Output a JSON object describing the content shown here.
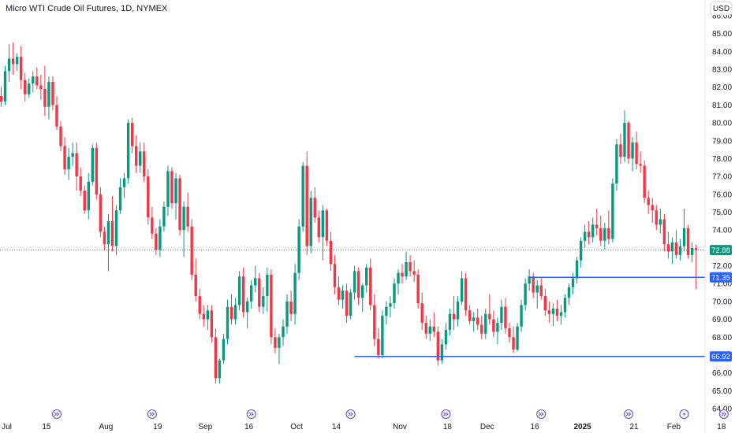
{
  "chart_data": {
    "type": "candlestick",
    "title": "Micro WTI Crude Oil Futures, 1D, NYMEX",
    "currency": "USD",
    "ylim": [
      64.0,
      86.0
    ],
    "y_ticks": [
      "64.00",
      "65.00",
      "66.00",
      "67.00",
      "68.00",
      "69.00",
      "70.00",
      "71.00",
      "72.00",
      "73.00",
      "74.00",
      "75.00",
      "76.00",
      "77.00",
      "78.00",
      "79.00",
      "80.00",
      "81.00",
      "82.00",
      "83.00",
      "84.00",
      "85.00",
      "86.00"
    ],
    "x_ticks": [
      {
        "label": "Jul",
        "i": 1
      },
      {
        "label": "15",
        "i": 11
      },
      {
        "label": "Aug",
        "i": 26
      },
      {
        "label": "19",
        "i": 39
      },
      {
        "label": "Sep",
        "i": 51
      },
      {
        "label": "16",
        "i": 62
      },
      {
        "label": "Oct",
        "i": 74
      },
      {
        "label": "14",
        "i": 84
      },
      {
        "label": "Nov",
        "i": 100
      },
      {
        "label": "18",
        "i": 112
      },
      {
        "label": "Dec",
        "i": 122
      },
      {
        "label": "16",
        "i": 134
      },
      {
        "label": "2025",
        "i": 146,
        "bold": true
      },
      {
        "label": "21",
        "i": 159
      },
      {
        "label": "Feb",
        "i": 169
      },
      {
        "label": "18",
        "i": 181
      }
    ],
    "last_price": {
      "label": "72.88",
      "value": 72.88,
      "color": "#089981"
    },
    "horizontal_levels": [
      {
        "label": "71.35",
        "value": 71.35,
        "start_i": 133,
        "color": "#2962ff"
      },
      {
        "label": "66.92",
        "value": 66.92,
        "start_i": 89,
        "color": "#2962ff"
      }
    ],
    "event_markers": [
      {
        "i": 14,
        "type": "arrow"
      },
      {
        "i": 38,
        "type": "arrow"
      },
      {
        "i": 63,
        "type": "arrow"
      },
      {
        "i": 88,
        "type": "arrow"
      },
      {
        "i": 112,
        "type": "arrow"
      },
      {
        "i": 136,
        "type": "arrow"
      },
      {
        "i": 158,
        "type": "arrow"
      },
      {
        "i": 172,
        "type": "lightning"
      },
      {
        "i": 182,
        "type": "arrow"
      }
    ],
    "up_color": "#089981",
    "down_color": "#f23645",
    "candles": [
      [
        81.5,
        82.0,
        80.9,
        81.2
      ],
      [
        81.2,
        83.2,
        81.0,
        82.9
      ],
      [
        82.9,
        84.4,
        82.3,
        83.6
      ],
      [
        83.6,
        84.5,
        82.7,
        83.3
      ],
      [
        83.3,
        83.9,
        82.9,
        83.7
      ],
      [
        83.7,
        84.3,
        81.9,
        82.4
      ],
      [
        82.4,
        82.8,
        81.2,
        81.6
      ],
      [
        81.6,
        82.5,
        81.4,
        82.2
      ],
      [
        82.2,
        82.9,
        81.7,
        82.6
      ],
      [
        82.6,
        83.1,
        81.9,
        82.1
      ],
      [
        82.1,
        82.7,
        81.3,
        81.9
      ],
      [
        81.9,
        83.2,
        80.4,
        80.9
      ],
      [
        80.9,
        82.6,
        80.2,
        82.3
      ],
      [
        82.3,
        82.6,
        80.7,
        81.0
      ],
      [
        81.0,
        81.5,
        79.6,
        79.8
      ],
      [
        79.8,
        80.1,
        78.4,
        78.7
      ],
      [
        78.7,
        79.2,
        77.1,
        77.4
      ],
      [
        77.4,
        78.6,
        76.8,
        78.1
      ],
      [
        78.1,
        78.9,
        77.6,
        78.3
      ],
      [
        78.3,
        78.9,
        76.2,
        77.0
      ],
      [
        77.0,
        77.5,
        75.9,
        76.2
      ],
      [
        76.2,
        76.5,
        74.9,
        75.1
      ],
      [
        75.1,
        77.2,
        74.6,
        76.7
      ],
      [
        76.7,
        78.8,
        76.5,
        78.6
      ],
      [
        78.6,
        78.9,
        75.7,
        76.0
      ],
      [
        76.0,
        76.4,
        73.6,
        73.9
      ],
      [
        73.9,
        74.2,
        72.9,
        73.2
      ],
      [
        73.2,
        74.9,
        71.7,
        74.5
      ],
      [
        74.5,
        75.9,
        72.8,
        73.1
      ],
      [
        73.1,
        75.4,
        72.6,
        75.1
      ],
      [
        75.1,
        76.9,
        74.9,
        76.4
      ],
      [
        76.4,
        77.2,
        75.8,
        76.9
      ],
      [
        76.9,
        80.2,
        76.6,
        80.0
      ],
      [
        80.0,
        80.3,
        78.3,
        78.7
      ],
      [
        78.7,
        79.3,
        77.2,
        77.6
      ],
      [
        77.6,
        78.9,
        77.2,
        78.4
      ],
      [
        78.4,
        78.9,
        76.7,
        77.0
      ],
      [
        77.0,
        77.4,
        74.3,
        74.7
      ],
      [
        74.7,
        75.3,
        73.5,
        73.8
      ],
      [
        73.8,
        74.1,
        72.6,
        72.9
      ],
      [
        72.9,
        74.6,
        72.5,
        74.2
      ],
      [
        74.2,
        75.6,
        73.9,
        75.3
      ],
      [
        75.3,
        77.6,
        74.8,
        77.3
      ],
      [
        77.3,
        77.5,
        75.2,
        75.5
      ],
      [
        75.5,
        77.2,
        74.6,
        76.9
      ],
      [
        76.9,
        77.1,
        73.7,
        74.0
      ],
      [
        74.0,
        75.6,
        72.5,
        75.3
      ],
      [
        75.3,
        76.1,
        73.9,
        74.2
      ],
      [
        74.2,
        74.6,
        71.2,
        71.5
      ],
      [
        71.5,
        72.4,
        70.0,
        70.3
      ],
      [
        70.3,
        70.7,
        69.0,
        69.3
      ],
      [
        69.3,
        69.8,
        68.6,
        69.0
      ],
      [
        69.0,
        69.8,
        68.4,
        69.5
      ],
      [
        69.5,
        69.8,
        67.7,
        68.0
      ],
      [
        68.0,
        68.5,
        65.4,
        65.7
      ],
      [
        65.7,
        66.8,
        65.4,
        66.7
      ],
      [
        66.7,
        68.2,
        66.5,
        67.9
      ],
      [
        67.9,
        70.1,
        67.6,
        69.7
      ],
      [
        69.7,
        70.4,
        68.7,
        69.0
      ],
      [
        69.0,
        70.2,
        68.7,
        69.8
      ],
      [
        69.8,
        71.7,
        69.5,
        71.4
      ],
      [
        71.4,
        71.9,
        69.1,
        69.4
      ],
      [
        69.4,
        70.2,
        68.5,
        70.0
      ],
      [
        70.0,
        71.2,
        69.6,
        70.9
      ],
      [
        70.9,
        72.0,
        70.5,
        71.3
      ],
      [
        71.3,
        71.6,
        69.4,
        69.7
      ],
      [
        69.7,
        70.8,
        69.3,
        70.3
      ],
      [
        70.3,
        71.9,
        69.4,
        71.5
      ],
      [
        71.5,
        71.8,
        67.6,
        68.0
      ],
      [
        68.0,
        68.5,
        67.1,
        67.4
      ],
      [
        67.4,
        68.2,
        66.5,
        68.0
      ],
      [
        68.0,
        69.0,
        67.5,
        68.6
      ],
      [
        68.6,
        70.4,
        68.2,
        70.0
      ],
      [
        70.0,
        70.6,
        68.9,
        69.3
      ],
      [
        69.3,
        72.1,
        68.7,
        71.6
      ],
      [
        71.6,
        74.6,
        71.2,
        74.2
      ],
      [
        74.2,
        77.8,
        73.9,
        77.6
      ],
      [
        77.6,
        78.4,
        72.6,
        73.1
      ],
      [
        73.1,
        76.2,
        72.7,
        75.8
      ],
      [
        75.8,
        76.4,
        74.4,
        74.7
      ],
      [
        74.7,
        75.1,
        73.3,
        73.6
      ],
      [
        73.6,
        75.4,
        72.3,
        75.1
      ],
      [
        75.1,
        75.2,
        73.1,
        73.4
      ],
      [
        73.4,
        73.9,
        71.7,
        72.1
      ],
      [
        72.1,
        72.6,
        70.4,
        70.8
      ],
      [
        70.8,
        71.4,
        69.8,
        70.1
      ],
      [
        70.1,
        70.9,
        69.6,
        70.6
      ],
      [
        70.6,
        71.0,
        68.8,
        69.2
      ],
      [
        69.2,
        70.7,
        69.0,
        70.5
      ],
      [
        70.5,
        72.0,
        70.1,
        71.7
      ],
      [
        71.7,
        71.9,
        69.8,
        70.2
      ],
      [
        70.2,
        71.0,
        69.4,
        70.9
      ],
      [
        70.9,
        72.1,
        70.5,
        71.9
      ],
      [
        71.9,
        72.4,
        69.5,
        69.8
      ],
      [
        69.8,
        70.4,
        67.5,
        67.9
      ],
      [
        67.9,
        68.5,
        66.8,
        67.0
      ],
      [
        67.0,
        69.5,
        66.8,
        69.2
      ],
      [
        69.2,
        70.0,
        68.7,
        69.7
      ],
      [
        69.7,
        70.3,
        69.1,
        69.9
      ],
      [
        69.9,
        71.3,
        69.6,
        71.0
      ],
      [
        71.0,
        71.8,
        70.4,
        71.6
      ],
      [
        71.6,
        72.1,
        71.0,
        71.4
      ],
      [
        71.4,
        72.8,
        71.2,
        72.2
      ],
      [
        72.2,
        72.6,
        71.4,
        71.7
      ],
      [
        71.7,
        72.3,
        71.1,
        71.5
      ],
      [
        71.5,
        71.8,
        69.6,
        69.9
      ],
      [
        69.9,
        70.5,
        68.4,
        68.8
      ],
      [
        68.8,
        69.2,
        67.9,
        68.2
      ],
      [
        68.2,
        69.0,
        67.8,
        68.6
      ],
      [
        68.6,
        69.4,
        68.0,
        68.3
      ],
      [
        68.3,
        68.6,
        66.4,
        66.7
      ],
      [
        66.7,
        67.9,
        66.5,
        67.6
      ],
      [
        67.6,
        68.8,
        67.3,
        68.4
      ],
      [
        68.4,
        69.6,
        68.1,
        69.3
      ],
      [
        69.3,
        70.3,
        68.4,
        69.0
      ],
      [
        69.0,
        70.3,
        68.6,
        70.0
      ],
      [
        70.0,
        71.7,
        69.8,
        71.3
      ],
      [
        71.3,
        71.6,
        69.2,
        69.5
      ],
      [
        69.5,
        69.8,
        68.7,
        68.9
      ],
      [
        68.9,
        69.4,
        68.3,
        69.1
      ],
      [
        69.1,
        69.6,
        68.4,
        68.7
      ],
      [
        68.7,
        69.2,
        67.9,
        68.2
      ],
      [
        68.2,
        69.6,
        67.9,
        69.3
      ],
      [
        69.3,
        70.4,
        68.7,
        69.0
      ],
      [
        69.0,
        69.5,
        68.0,
        68.3
      ],
      [
        68.3,
        69.1,
        67.6,
        68.8
      ],
      [
        68.8,
        70.1,
        68.4,
        69.7
      ],
      [
        69.7,
        70.2,
        68.2,
        68.5
      ],
      [
        68.5,
        68.8,
        67.7,
        68.0
      ],
      [
        68.0,
        68.6,
        67.1,
        67.3
      ],
      [
        67.3,
        68.8,
        67.2,
        68.6
      ],
      [
        68.6,
        70.1,
        68.3,
        69.8
      ],
      [
        69.8,
        71.3,
        69.5,
        71.0
      ],
      [
        71.0,
        71.8,
        70.6,
        71.4
      ],
      [
        71.4,
        71.6,
        70.2,
        70.5
      ],
      [
        70.5,
        71.2,
        69.6,
        70.9
      ],
      [
        70.9,
        71.3,
        70.1,
        70.3
      ],
      [
        70.3,
        70.7,
        69.2,
        69.5
      ],
      [
        69.5,
        70.0,
        68.8,
        69.3
      ],
      [
        69.3,
        69.9,
        68.6,
        69.6
      ],
      [
        69.6,
        70.1,
        68.9,
        69.2
      ],
      [
        69.2,
        69.8,
        68.7,
        69.4
      ],
      [
        69.4,
        70.4,
        69.1,
        70.2
      ],
      [
        70.2,
        71.0,
        69.8,
        70.8
      ],
      [
        70.8,
        71.6,
        70.4,
        71.3
      ],
      [
        71.3,
        72.5,
        71.0,
        72.3
      ],
      [
        72.3,
        73.6,
        71.9,
        73.4
      ],
      [
        73.4,
        74.3,
        73.0,
        73.9
      ],
      [
        73.9,
        74.5,
        73.2,
        73.6
      ],
      [
        73.6,
        74.7,
        73.3,
        74.3
      ],
      [
        74.3,
        75.2,
        73.7,
        74.1
      ],
      [
        74.1,
        74.8,
        73.1,
        73.4
      ],
      [
        73.4,
        74.4,
        72.9,
        74.1
      ],
      [
        74.1,
        75.1,
        73.2,
        73.5
      ],
      [
        73.5,
        76.9,
        73.3,
        76.6
      ],
      [
        76.6,
        79.1,
        76.2,
        78.8
      ],
      [
        78.8,
        79.4,
        77.7,
        78.1
      ],
      [
        78.1,
        80.7,
        77.8,
        80.0
      ],
      [
        80.0,
        80.1,
        77.7,
        78.0
      ],
      [
        78.0,
        79.2,
        77.3,
        78.9
      ],
      [
        78.9,
        79.5,
        77.4,
        77.7
      ],
      [
        77.7,
        78.4,
        77.2,
        77.6
      ],
      [
        77.6,
        77.9,
        75.5,
        75.8
      ],
      [
        75.8,
        76.2,
        74.9,
        75.4
      ],
      [
        75.4,
        75.8,
        74.4,
        75.1
      ],
      [
        75.1,
        75.4,
        74.0,
        74.3
      ],
      [
        74.3,
        75.2,
        73.8,
        74.6
      ],
      [
        74.6,
        74.9,
        72.8,
        73.2
      ],
      [
        73.2,
        73.9,
        72.4,
        72.8
      ],
      [
        72.8,
        73.6,
        72.1,
        73.3
      ],
      [
        73.3,
        74.0,
        72.4,
        72.6
      ],
      [
        72.6,
        73.5,
        72.3,
        73.1
      ],
      [
        73.1,
        75.2,
        72.8,
        74.1
      ],
      [
        74.1,
        74.3,
        72.4,
        72.6
      ],
      [
        72.6,
        73.3,
        72.2,
        73.0
      ],
      [
        73.0,
        73.2,
        70.7,
        72.88
      ]
    ]
  }
}
